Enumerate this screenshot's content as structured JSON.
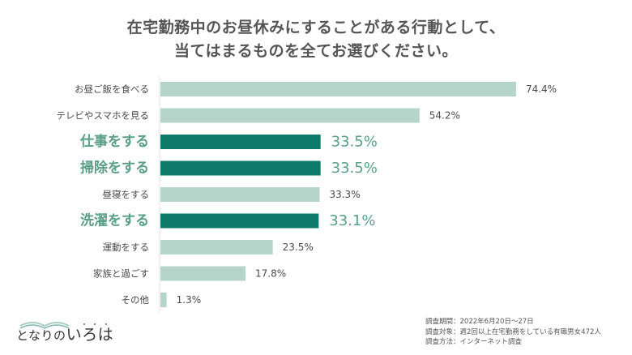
{
  "title": {
    "line1": "在宅勤務中のお昼休みにすることがある行動として、",
    "line2": "当てはまるものを全てお選びください。"
  },
  "colors": {
    "normal_bar": "#b5d5cb",
    "highlight_bar": "#0e7a6c",
    "highlight_text": "#5a9e88",
    "normal_text": "#4a4a4a",
    "axis": "#e6e0e0"
  },
  "chart_data": {
    "type": "bar",
    "orientation": "horizontal",
    "title": "在宅勤務中のお昼休みにすることがある行動として、当てはまるものを全てお選びください。",
    "unit": "%",
    "categories": [
      "お昼ご飯を食べる",
      "テレビやスマホを見る",
      "仕事をする",
      "掃除をする",
      "昼寝をする",
      "洗濯をする",
      "運動をする",
      "家族と過ごす",
      "その他"
    ],
    "values": [
      74.4,
      54.2,
      33.5,
      33.5,
      33.3,
      33.1,
      23.5,
      17.8,
      1.3
    ],
    "labels": [
      "74.4%",
      "54.2%",
      "33.5%",
      "33.5%",
      "33.3%",
      "33.1%",
      "23.5%",
      "17.8%",
      "1.3%"
    ],
    "highlighted": [
      false,
      false,
      true,
      true,
      false,
      true,
      false,
      false,
      false
    ],
    "xlim": [
      0,
      100
    ],
    "grid": false,
    "legend": "none"
  },
  "survey_notes": [
    "調査期間：2022年6月20日～27日",
    "調査対象：週2回以上在宅勤務をしている有職男女472人",
    "調査方法：インターネット調査"
  ],
  "logo": {
    "text_small": "となりの",
    "text_large": "いろは"
  }
}
